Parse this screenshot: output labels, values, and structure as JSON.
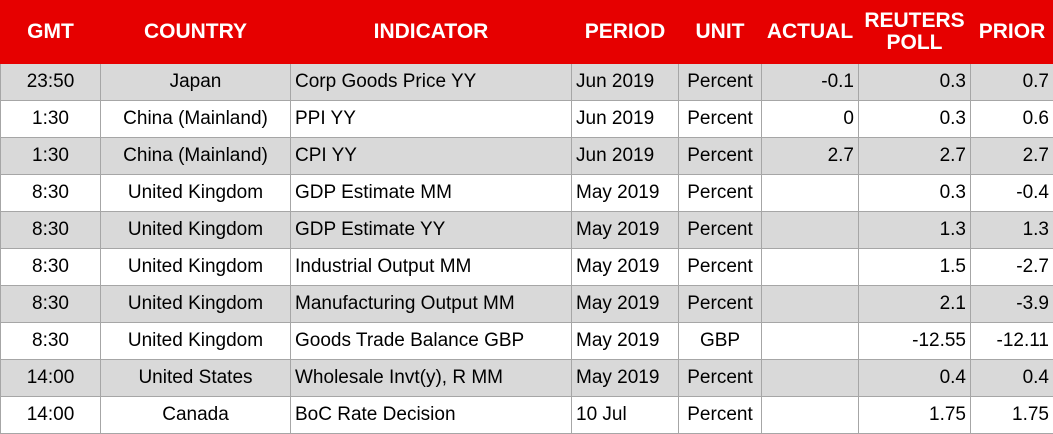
{
  "headers": {
    "gmt": "GMT",
    "country": "COUNTRY",
    "indicator": "INDICATOR",
    "period": "PERIOD",
    "unit": "UNIT",
    "actual": "ACTUAL",
    "poll_line1": "REUTERS",
    "poll_line2": "POLL",
    "prior": "PRIOR"
  },
  "rows": [
    {
      "gmt": "23:50",
      "country": "Japan",
      "indicator": "Corp Goods Price YY",
      "period": "Jun 2019",
      "unit": "Percent",
      "actual": "-0.1",
      "poll": "0.3",
      "prior": "0.7"
    },
    {
      "gmt": "1:30",
      "country": "China (Mainland)",
      "indicator": "PPI YY",
      "period": "Jun 2019",
      "unit": "Percent",
      "actual": "0",
      "poll": "0.3",
      "prior": "0.6"
    },
    {
      "gmt": "1:30",
      "country": "China (Mainland)",
      "indicator": "CPI YY",
      "period": "Jun 2019",
      "unit": "Percent",
      "actual": "2.7",
      "poll": "2.7",
      "prior": "2.7"
    },
    {
      "gmt": "8:30",
      "country": "United Kingdom",
      "indicator": "GDP Estimate MM",
      "period": "May 2019",
      "unit": "Percent",
      "actual": "",
      "poll": "0.3",
      "prior": "-0.4"
    },
    {
      "gmt": "8:30",
      "country": "United Kingdom",
      "indicator": "GDP Estimate YY",
      "period": "May 2019",
      "unit": "Percent",
      "actual": "",
      "poll": "1.3",
      "prior": "1.3"
    },
    {
      "gmt": "8:30",
      "country": "United Kingdom",
      "indicator": "Industrial Output MM",
      "period": "May 2019",
      "unit": "Percent",
      "actual": "",
      "poll": "1.5",
      "prior": "-2.7"
    },
    {
      "gmt": "8:30",
      "country": "United Kingdom",
      "indicator": "Manufacturing Output MM",
      "period": "May 2019",
      "unit": "Percent",
      "actual": "",
      "poll": "2.1",
      "prior": "-3.9"
    },
    {
      "gmt": "8:30",
      "country": "United Kingdom",
      "indicator": "Goods Trade Balance GBP",
      "period": "May 2019",
      "unit": "GBP",
      "actual": "",
      "poll": "-12.55",
      "prior": "-12.11"
    },
    {
      "gmt": "14:00",
      "country": "United States",
      "indicator": "Wholesale Invt(y), R MM",
      "period": "May 2019",
      "unit": "Percent",
      "actual": "",
      "poll": "0.4",
      "prior": "0.4"
    },
    {
      "gmt": "14:00",
      "country": "Canada",
      "indicator": "BoC Rate Decision",
      "period": "10 Jul",
      "unit": "Percent",
      "actual": "",
      "poll": "1.75",
      "prior": "1.75"
    }
  ],
  "colors": {
    "header_bg": "#e60000",
    "header_text": "#ffffff",
    "row_shade": "#d9d9d9"
  }
}
